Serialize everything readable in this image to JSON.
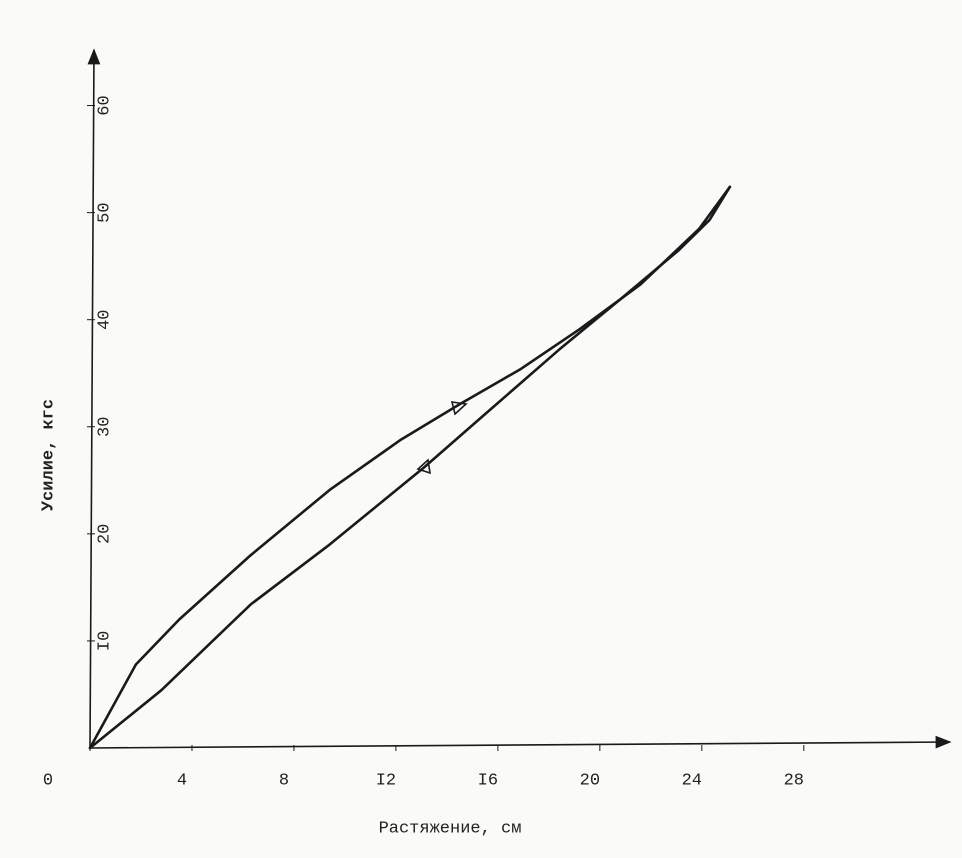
{
  "chart_data": {
    "type": "line",
    "x_label": "Растяжение, см",
    "y_label": "Усилие, кгс",
    "xlim": [
      0,
      33.5
    ],
    "ylim": [
      0,
      65
    ],
    "xticks": [
      0,
      4,
      8,
      {
        "value": 12,
        "label": "I2"
      },
      {
        "value": 16,
        "label": "I6"
      },
      20,
      24,
      28
    ],
    "yticks": [
      {
        "value": 10,
        "label": "I0"
      },
      20,
      30,
      40,
      50,
      60
    ],
    "series": [
      {
        "color": "#1a1a1a",
        "x": [
          0,
          1.8,
          3.5,
          6.3,
          9.4,
          12.2,
          14.5,
          16.9,
          19.2,
          21.6,
          23.9,
          25.1
        ],
        "values": [
          0,
          7.8,
          12.0,
          18.0,
          24.1,
          28.8,
          32.1,
          35.4,
          39.1,
          43.3,
          48.5,
          52.4
        ]
      },
      {
        "color": "#1a1a1a",
        "x": [
          0,
          2.8,
          6.3,
          9.4,
          13.1,
          15.7,
          18.4,
          20.8,
          23.1,
          24.3,
          25.1
        ],
        "values": [
          0,
          5.4,
          13.4,
          19.0,
          26.2,
          31.6,
          37.2,
          41.9,
          46.5,
          49.3,
          52.4
        ]
      }
    ]
  }
}
